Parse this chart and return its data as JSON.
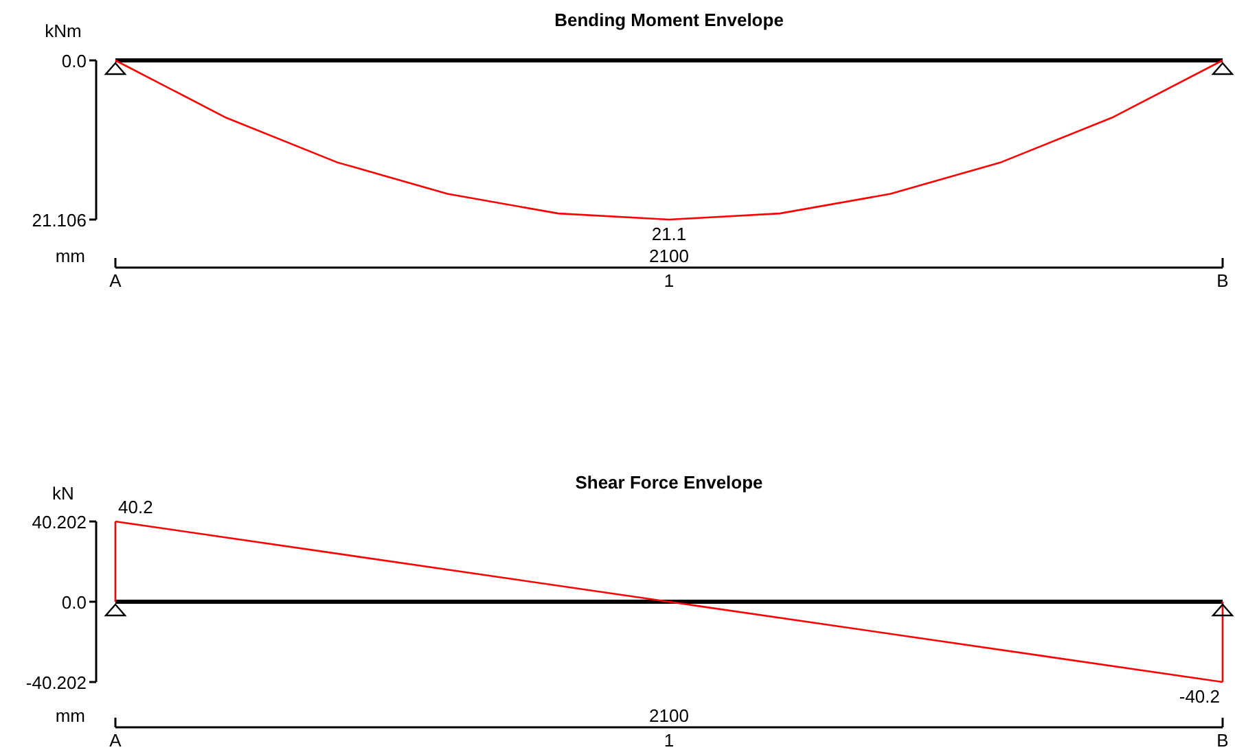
{
  "chart_data": [
    {
      "type": "line",
      "title": "Bending Moment Envelope",
      "ylabel": "kNm",
      "xlabel": "mm",
      "annotations": [
        "2100"
      ],
      "categories": [
        "A",
        null,
        null,
        null,
        null,
        "1",
        null,
        null,
        null,
        null,
        "B"
      ],
      "series": [
        {
          "color": "#ff0000",
          "values": [
            0,
            7.6,
            13.5,
            17.7,
            20.3,
            21.106,
            20.3,
            17.7,
            13.5,
            7.6,
            0
          ],
          "value_labels": [
            null,
            null,
            null,
            null,
            null,
            "21.1",
            null,
            null,
            null,
            null,
            null
          ]
        }
      ],
      "ylim": [
        21.106,
        0
      ],
      "yticks": [
        {
          "value": 0,
          "label": "0.0"
        },
        21.106
      ],
      "ref_lines": [
        {
          "axis": "y",
          "value": 0,
          "color": "#000000"
        }
      ],
      "grid": false,
      "legend": false,
      "marker": "none",
      "line_style": "solid"
    },
    {
      "type": "line",
      "title": "Shear Force Envelope",
      "ylabel": "kN",
      "xlabel": "mm",
      "annotations": [
        "2100"
      ],
      "categories": [
        "A",
        "1",
        "B"
      ],
      "series": [
        {
          "color": "#ff0000",
          "values": [
            40.202,
            0,
            -40.202
          ],
          "value_labels": [
            "40.2",
            null,
            "-40.2"
          ]
        }
      ],
      "ylim": [
        -40.202,
        40.202
      ],
      "yticks": [
        -40.202,
        {
          "value": 0,
          "label": "0.0"
        },
        40.202
      ],
      "ref_lines": [
        {
          "axis": "y",
          "value": 0,
          "color": "#000000"
        }
      ],
      "grid": false,
      "legend": false,
      "marker": "none",
      "line_style": "solid"
    }
  ]
}
